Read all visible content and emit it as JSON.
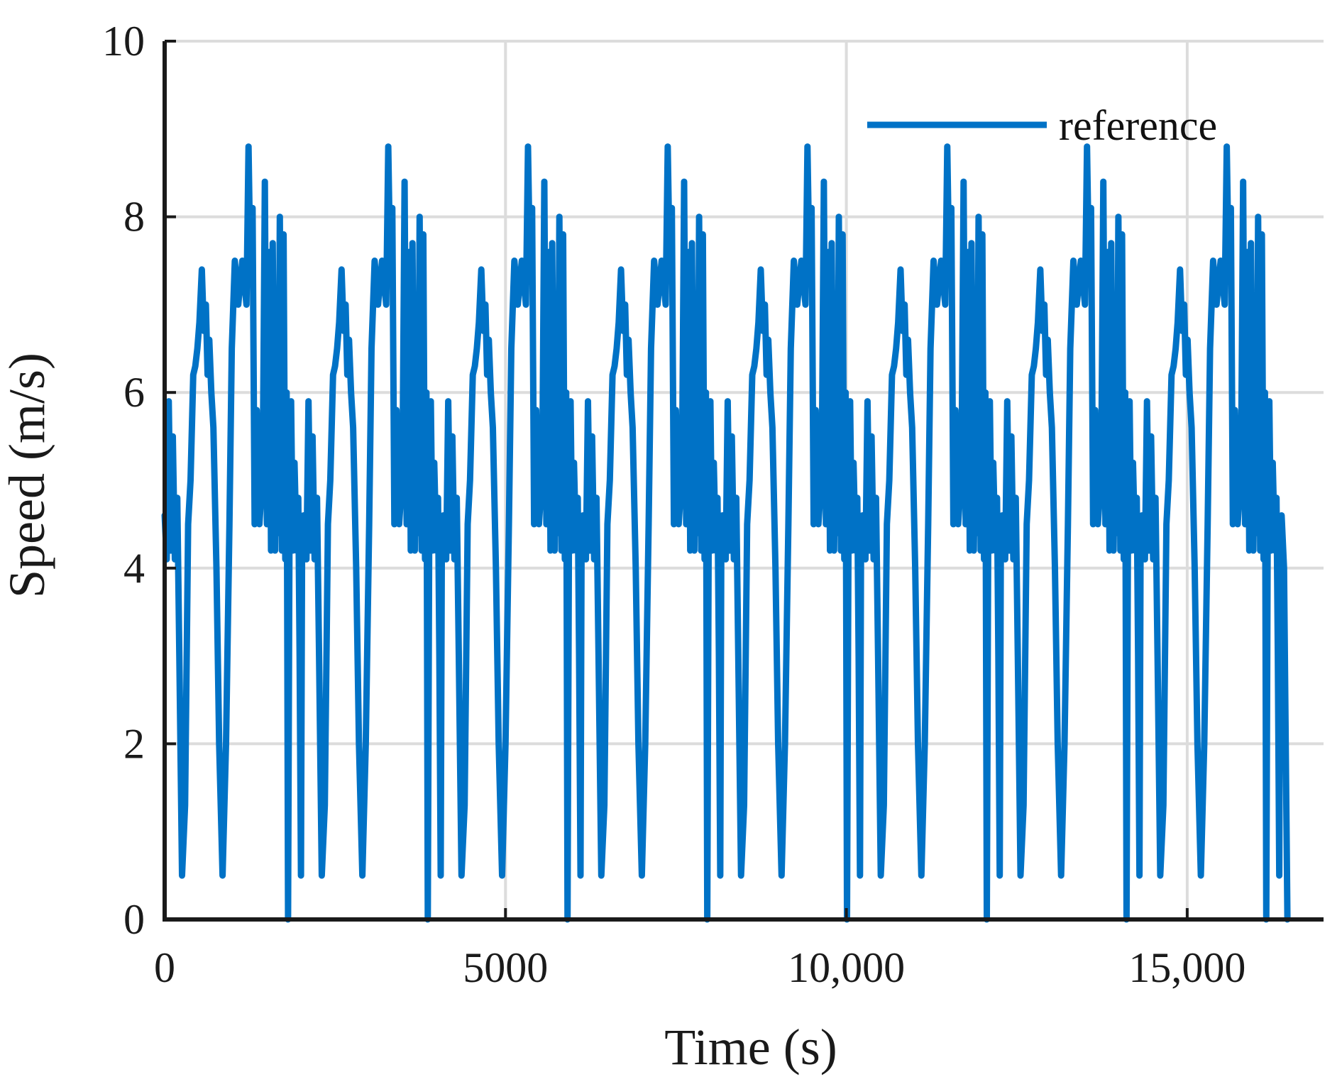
{
  "chart_data": {
    "type": "line",
    "xlabel": "Time (s)",
    "ylabel": "Speed (m/s)",
    "xlim": [
      0,
      17000
    ],
    "ylim": [
      0,
      10
    ],
    "xticks": [
      0,
      5000,
      10000,
      15000
    ],
    "xtick_labels": [
      "0",
      "5000",
      "10,000",
      "15,000"
    ],
    "yticks": [
      0,
      2,
      4,
      6,
      8,
      10
    ],
    "ytick_labels": [
      "0",
      "2",
      "4",
      "6",
      "8",
      "10"
    ],
    "grid": true,
    "legend_position": "top-right",
    "period": 2050,
    "cycles": 8,
    "series": [
      {
        "name": "reference",
        "color": "#0072c6",
        "cycle_x": [
          0,
          30,
          60,
          90,
          120,
          150,
          185,
          215,
          255,
          300,
          345,
          380,
          420,
          450,
          480,
          510,
          545,
          575,
          605,
          630,
          655,
          685,
          715,
          760,
          800,
          850,
          900,
          950,
          985,
          1030,
          1080,
          1140,
          1200,
          1230,
          1260,
          1290,
          1320,
          1350,
          1390,
          1415,
          1440,
          1470,
          1500,
          1535,
          1560,
          1585,
          1620,
          1640,
          1665,
          1690,
          1720,
          1745,
          1770,
          1790,
          1810,
          1830,
          1855,
          1880,
          1905,
          1935,
          1960,
          1980,
          2000,
          2015,
          2035
        ],
        "cycle_y": [
          4.6,
          4.1,
          5.9,
          4.2,
          5.5,
          4.1,
          4.8,
          3.0,
          0.5,
          1.3,
          4.5,
          5.0,
          6.2,
          6.3,
          6.5,
          6.8,
          7.4,
          6.7,
          7.0,
          6.2,
          6.6,
          6.0,
          5.6,
          4.0,
          2.0,
          0.5,
          2.0,
          4.5,
          6.5,
          7.5,
          7.0,
          7.5,
          7.0,
          8.8,
          7.3,
          8.1,
          4.5,
          5.8,
          4.5,
          4.8,
          5.2,
          8.4,
          4.5,
          7.6,
          4.2,
          7.7,
          4.2,
          5.5,
          4.4,
          8.0,
          4.2,
          7.8,
          4.1,
          6.0,
          0.0,
          4.2,
          5.9,
          4.2,
          5.2,
          4.2,
          4.8,
          3.0,
          0.5,
          4.1,
          4.6
        ],
        "end_x": [
          16420,
          16470
        ],
        "end_y": [
          4.0,
          0.0
        ]
      }
    ]
  }
}
